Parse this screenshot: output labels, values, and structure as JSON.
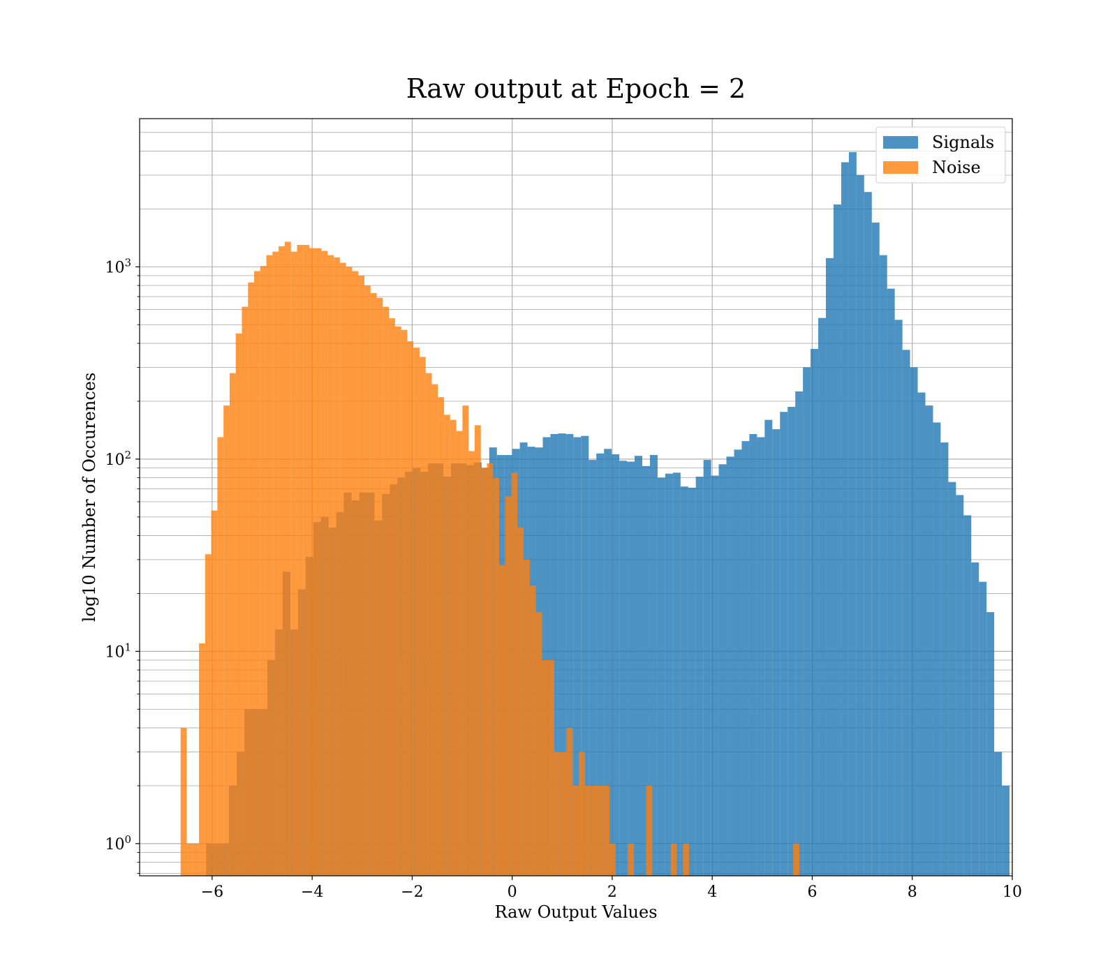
{
  "chart_data": {
    "type": "bar",
    "title": "Raw output at Epoch = 2",
    "xlabel": "Raw Output Values",
    "ylabel": "log10 Number of Occurences",
    "yscale": "log",
    "xlim": [
      -7.45,
      10.0
    ],
    "ylim": [
      0.68,
      5900
    ],
    "grid": true,
    "legend_position": "top-right",
    "x_ticks": [
      -6,
      -4,
      -2,
      0,
      2,
      4,
      6,
      8,
      10
    ],
    "x_tick_labels": [
      "−6",
      "−4",
      "−2",
      "0",
      "2",
      "4",
      "6",
      "8",
      "10"
    ],
    "y_major_ticks": [
      1,
      10,
      100,
      1000
    ],
    "y_tick_labels": [
      {
        "base": "10",
        "exp": "0"
      },
      {
        "base": "10",
        "exp": "1"
      },
      {
        "base": "10",
        "exp": "2"
      },
      {
        "base": "10",
        "exp": "3"
      }
    ],
    "series": [
      {
        "name": "Signals",
        "color": "#1f77b4",
        "opacity": 0.8,
        "bin_start": -6.12,
        "bin_width": 0.153,
        "counts": [
          1,
          1,
          1,
          2,
          3,
          5,
          5,
          5,
          9,
          13,
          26,
          13,
          21,
          31,
          47,
          50,
          44,
          53,
          67,
          61,
          67,
          67,
          48,
          66,
          74,
          80,
          86,
          90,
          86,
          95,
          95,
          81,
          95,
          95,
          93,
          96,
          90,
          115,
          105,
          105,
          113,
          122,
          116,
          115,
          130,
          135,
          136,
          135,
          130,
          132,
          99,
          107,
          113,
          106,
          98,
          97,
          104,
          92,
          105,
          80,
          84,
          85,
          72,
          71,
          81,
          99,
          82,
          94,
          103,
          112,
          124,
          135,
          130,
          160,
          143,
          176,
          187,
          225,
          300,
          374,
          542,
          1110,
          2110,
          3500,
          3950,
          3000,
          2450,
          1700,
          1150,
          770,
          530,
          370,
          300,
          222,
          190,
          155,
          122,
          76,
          65,
          51,
          29,
          23,
          16,
          3,
          2
        ]
      },
      {
        "name": "Noise",
        "color": "#ff7f0e",
        "opacity": 0.8,
        "bin_start": -6.63,
        "bin_width": 0.1225,
        "counts": [
          4,
          1,
          1,
          11,
          32,
          54,
          130,
          190,
          280,
          450,
          620,
          830,
          950,
          1010,
          1150,
          1200,
          1280,
          1350,
          1200,
          1300,
          1300,
          1250,
          1250,
          1210,
          1150,
          1120,
          1050,
          1000,
          950,
          900,
          800,
          730,
          690,
          620,
          540,
          490,
          470,
          410,
          380,
          340,
          280,
          245,
          210,
          170,
          160,
          140,
          190,
          110,
          150,
          90,
          95,
          80,
          28,
          64,
          85,
          44,
          30,
          22,
          16,
          9,
          9,
          3,
          3,
          4,
          2,
          3,
          2,
          2,
          2,
          2,
          1,
          0,
          0,
          1,
          0,
          0,
          2,
          0,
          0,
          0,
          1,
          0,
          1,
          0,
          0,
          0,
          0,
          0,
          0,
          0,
          0,
          0,
          0,
          0,
          0,
          0,
          0,
          0,
          0,
          0,
          1
        ]
      }
    ]
  }
}
